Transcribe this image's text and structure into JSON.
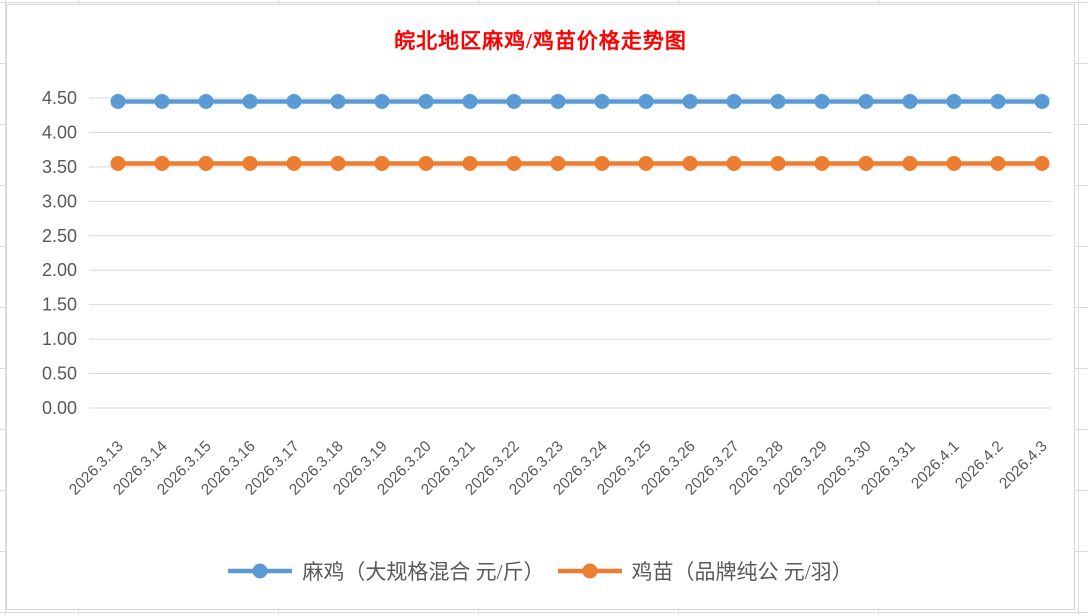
{
  "chart_data": {
    "type": "line",
    "title": "皖北地区麻鸡/鸡苗价格走势图",
    "title_color": "#FF0000",
    "categories": [
      "2026.3.13",
      "2026.3.14",
      "2026.3.15",
      "2026.3.16",
      "2026.3.17",
      "2026.3.18",
      "2026.3.19",
      "2026.3.20",
      "2026.3.21",
      "2026.3.22",
      "2026.3.23",
      "2026.3.24",
      "2026.3.25",
      "2026.3.26",
      "2026.3.27",
      "2026.3.28",
      "2026.3.29",
      "2026.3.30",
      "2026.3.31",
      "2026.4.1",
      "2026.4.2",
      "2026.4.3"
    ],
    "series": [
      {
        "name": "麻鸡（大规格混合 元/斤）",
        "color": "#5B9BD5",
        "values": [
          4.45,
          4.45,
          4.45,
          4.45,
          4.45,
          4.45,
          4.45,
          4.45,
          4.45,
          4.45,
          4.45,
          4.45,
          4.45,
          4.45,
          4.45,
          4.45,
          4.45,
          4.45,
          4.45,
          4.45,
          4.45,
          4.45
        ]
      },
      {
        "name": "鸡苗（品牌纯公 元/羽）",
        "color": "#ED7D31",
        "values": [
          3.55,
          3.55,
          3.55,
          3.55,
          3.55,
          3.55,
          3.55,
          3.55,
          3.55,
          3.55,
          3.55,
          3.55,
          3.55,
          3.55,
          3.55,
          3.55,
          3.55,
          3.55,
          3.55,
          3.55,
          3.55,
          3.55
        ]
      }
    ],
    "ylim": [
      0,
      4.5
    ],
    "ytick_step": 0.5,
    "ytick_labels": [
      "0.00",
      "0.50",
      "1.00",
      "1.50",
      "2.00",
      "2.50",
      "3.00",
      "3.50",
      "4.00",
      "4.50"
    ],
    "grid": true,
    "legend_position": "bottom",
    "axis_label_color": "#595959",
    "gridline_color": "#D9D9D9"
  }
}
